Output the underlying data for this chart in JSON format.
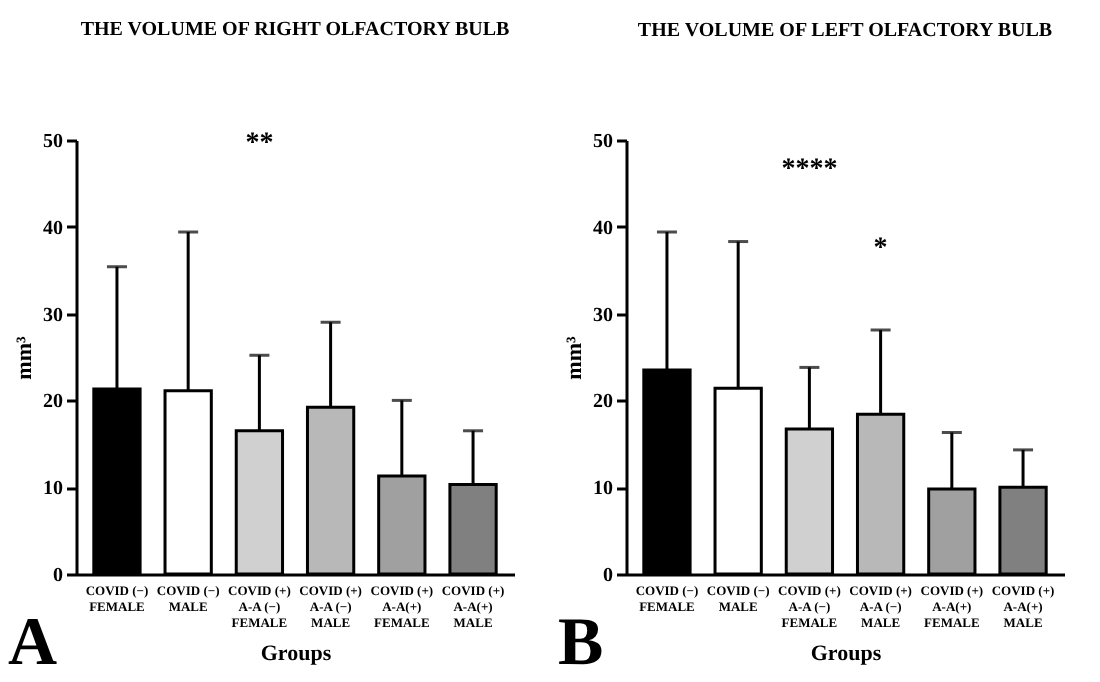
{
  "chart_data": [
    {
      "type": "bar",
      "title": "THE VOLUME OF RIGHT OLFACTORY BULB",
      "xlabel": "Groups",
      "ylabel": "mm³",
      "categories": [
        "COVID (−)\nFEMALE",
        "COVID (−)\nMALE",
        "COVID (+)\nA-A (−)\nFEMALE",
        "COVID (+)\nA-A (−)\nMALE",
        "COVID (+)\nA-A(+)\nFEMALE",
        "COVID (+)\nA-A(+)\nMALE"
      ],
      "values": [
        21.3,
        21.1,
        16.5,
        19.2,
        11.3,
        10.3
      ],
      "errors": [
        [
          21.3,
          35.4
        ],
        [
          21.1,
          39.4
        ],
        [
          16.5,
          25.2
        ],
        [
          19.2,
          29.0
        ],
        [
          11.3,
          20.0
        ],
        [
          10.3,
          16.5
        ]
      ],
      "colors": [
        "#000000",
        "#ffffff",
        "#d0d0d0",
        "#b8b8b8",
        "#a0a0a0",
        "#808080"
      ],
      "ylim": [
        0,
        50
      ],
      "yticks": [
        0,
        10,
        20,
        30,
        40,
        50
      ],
      "grid": false,
      "legend": false,
      "annotations": [
        "A",
        "**"
      ]
    },
    {
      "type": "bar",
      "title": "THE VOLUME OF LEFT OLFACTORY BULB",
      "xlabel": "Groups",
      "ylabel": "mm³",
      "categories": [
        "COVID (−)\nFEMALE",
        "COVID (−)\nMALE",
        "COVID (+)\nA-A (−)\nFEMALE",
        "COVID (+)\nA-A (−)\nMALE",
        "COVID (+)\nA-A(+)\nFEMALE",
        "COVID (+)\nA-A(+)\nMALE"
      ],
      "values": [
        23.5,
        21.4,
        16.7,
        18.4,
        9.8,
        10.0
      ],
      "errors": [
        [
          23.5,
          39.4
        ],
        [
          21.4,
          38.3
        ],
        [
          16.7,
          23.8
        ],
        [
          18.4,
          28.1
        ],
        [
          9.8,
          16.3
        ],
        [
          10.0,
          14.3
        ]
      ],
      "colors": [
        "#000000",
        "#ffffff",
        "#d0d0d0",
        "#b8b8b8",
        "#a0a0a0",
        "#808080"
      ],
      "ylim": [
        0,
        50
      ],
      "yticks": [
        0,
        10,
        20,
        30,
        40,
        50
      ],
      "grid": false,
      "legend": false,
      "annotations": [
        "B",
        "****",
        "*"
      ]
    }
  ]
}
